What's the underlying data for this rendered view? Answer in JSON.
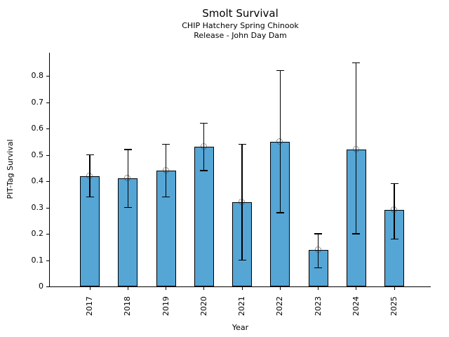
{
  "figure": {
    "title": "Smolt Survival",
    "subtitle_line1": "CHIP Hatchery Spring Chinook",
    "subtitle_line2": "Release - John Day Dam",
    "background_color": "#ffffff"
  },
  "chart_data": {
    "type": "bar",
    "title": "Smolt Survival",
    "subtitle": [
      "CHIP Hatchery Spring Chinook",
      "Release - John Day Dam"
    ],
    "xlabel": "Year",
    "ylabel": "PIT-Tag Survival",
    "categories": [
      "2017",
      "2018",
      "2019",
      "2020",
      "2021",
      "2022",
      "2023",
      "2024",
      "2025"
    ],
    "values": [
      0.42,
      0.41,
      0.44,
      0.53,
      0.32,
      0.55,
      0.14,
      0.52,
      0.29
    ],
    "error_low": [
      0.34,
      0.3,
      0.34,
      0.44,
      0.1,
      0.28,
      0.07,
      0.2,
      0.18
    ],
    "error_high": [
      0.5,
      0.52,
      0.54,
      0.62,
      0.54,
      0.82,
      0.2,
      0.85,
      0.39
    ],
    "ylim": [
      0,
      0.888
    ],
    "yticks": [
      0,
      0.1,
      0.2,
      0.3,
      0.4,
      0.5,
      0.6,
      0.7,
      0.8
    ],
    "ytick_labels": [
      "0",
      "0.1",
      "0.2",
      "0.3",
      "0.4",
      "0.5",
      "0.6",
      "0.7",
      "0.8"
    ],
    "grid": false,
    "legend": null,
    "bar_color": "#55a5d5",
    "bar_edge_color": "#000000",
    "errorbar_color": "#000000",
    "marker": "open-circle",
    "x_tick_rotation_deg": 90
  }
}
